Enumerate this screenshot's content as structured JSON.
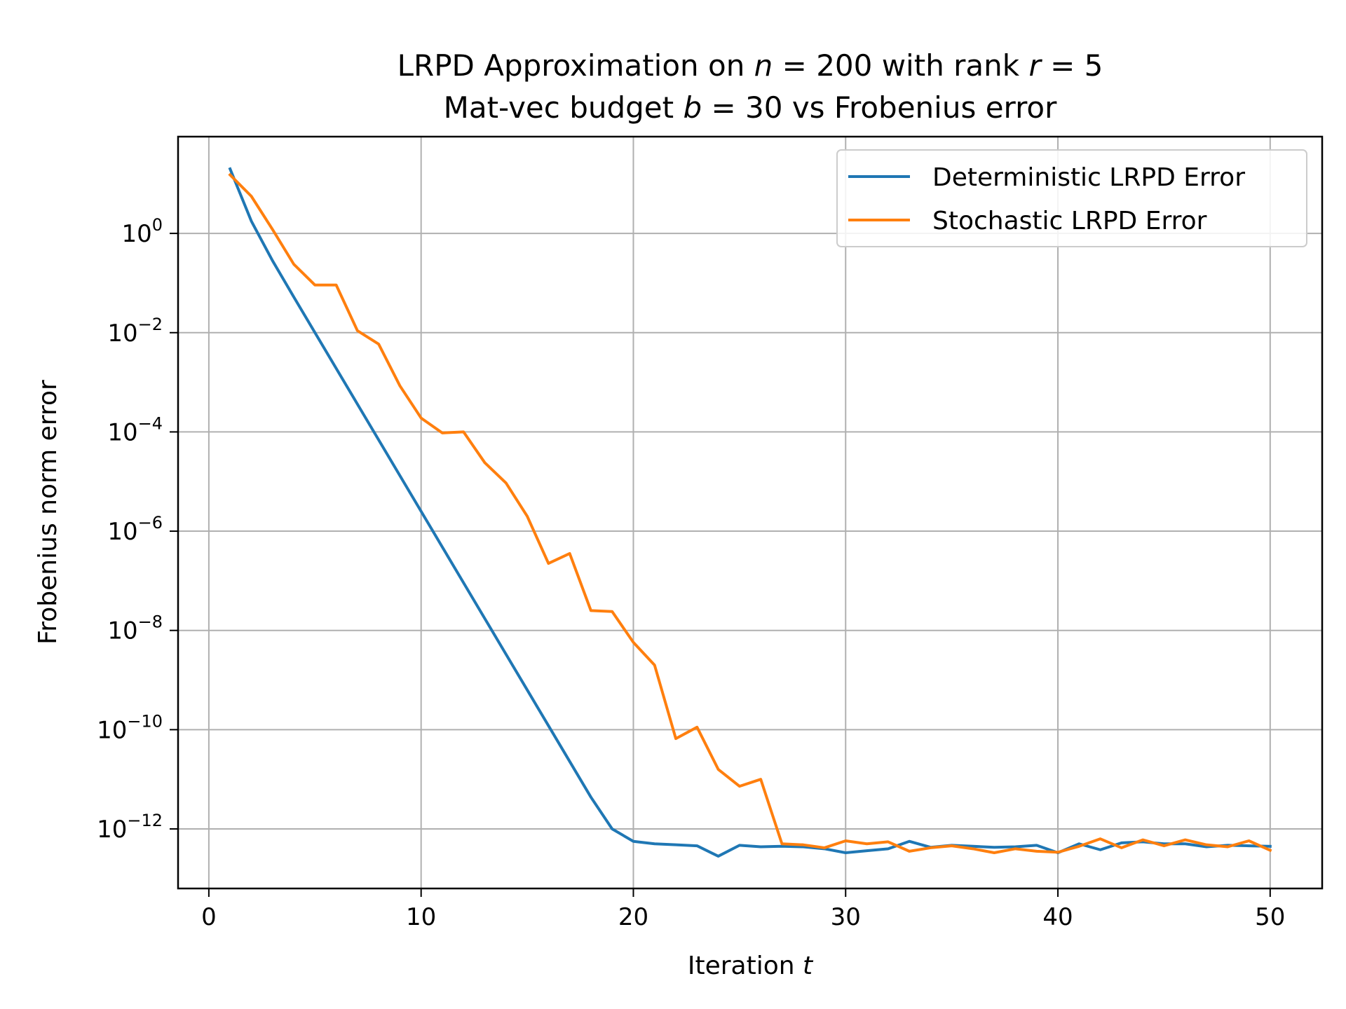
{
  "chart_data": {
    "type": "line",
    "title_line1": "LRPD Approximation on n = 200 with rank r = 5",
    "title_line2": "Mat-vec budget b = 30 vs Frobenius error",
    "xlabel": "Iteration t",
    "ylabel": "Frobenius norm error",
    "xscale": "linear",
    "yscale": "log",
    "xlim": [
      -1.45,
      52.45
    ],
    "ylim_log10": [
      -13.2,
      1.95
    ],
    "x_ticks": [
      0,
      10,
      20,
      30,
      40,
      50
    ],
    "x_tick_labels": [
      "0",
      "10",
      "20",
      "30",
      "40",
      "50"
    ],
    "y_ticks_log10": [
      0,
      -2,
      -4,
      -6,
      -8,
      -10,
      -12
    ],
    "y_tick_labels": [
      {
        "base": "10",
        "exp": "0"
      },
      {
        "base": "10",
        "exp": "−2"
      },
      {
        "base": "10",
        "exp": "−4"
      },
      {
        "base": "10",
        "exp": "−6"
      },
      {
        "base": "10",
        "exp": "−8"
      },
      {
        "base": "10",
        "exp": "−10"
      },
      {
        "base": "10",
        "exp": "−12"
      }
    ],
    "grid": true,
    "legend_position": "upper right",
    "x": [
      1,
      2,
      3,
      4,
      5,
      6,
      7,
      8,
      9,
      10,
      11,
      12,
      13,
      14,
      15,
      16,
      17,
      18,
      19,
      20,
      21,
      22,
      23,
      24,
      25,
      26,
      27,
      28,
      29,
      30,
      31,
      32,
      33,
      34,
      35,
      36,
      37,
      38,
      39,
      40,
      41,
      42,
      43,
      44,
      45,
      46,
      47,
      48,
      49,
      50
    ],
    "series": [
      {
        "name": "Deterministic LRPD Error",
        "color": "#1f77b4",
        "log10_values": [
          1.3,
          0.25,
          -0.55,
          -1.28,
          -2.0,
          -2.72,
          -3.44,
          -4.16,
          -4.88,
          -5.6,
          -6.32,
          -7.04,
          -7.76,
          -8.48,
          -9.2,
          -9.92,
          -10.64,
          -11.36,
          -12.0,
          -12.25,
          -12.3,
          -12.32,
          -12.34,
          -12.55,
          -12.33,
          -12.36,
          -12.35,
          -12.36,
          -12.4,
          -12.48,
          -12.44,
          -12.4,
          -12.25,
          -12.37,
          -12.33,
          -12.35,
          -12.37,
          -12.36,
          -12.33,
          -12.48,
          -12.3,
          -12.42,
          -12.28,
          -12.26,
          -12.3,
          -12.3,
          -12.36,
          -12.33,
          -12.34,
          -12.35
        ],
        "values": [
          19.95,
          1.778,
          0.2818,
          0.05248,
          0.01,
          0.001905,
          0.0003631,
          6.918e-05,
          1.318e-05,
          2.512e-06,
          4.786e-07,
          9.12e-08,
          1.738e-08,
          3.311e-09,
          6.31e-10,
          1.202e-10,
          2.291e-11,
          4.365e-12,
          1e-12,
          5.623e-13,
          5.012e-13,
          4.786e-13,
          4.571e-13,
          2.818e-13,
          4.677e-13,
          4.365e-13,
          4.467e-13,
          4.365e-13,
          3.981e-13,
          3.311e-13,
          3.631e-13,
          3.981e-13,
          5.623e-13,
          4.266e-13,
          4.677e-13,
          4.467e-13,
          4.266e-13,
          4.365e-13,
          4.677e-13,
          3.311e-13,
          5.012e-13,
          3.802e-13,
          5.248e-13,
          5.495e-13,
          5.012e-13,
          5.012e-13,
          4.365e-13,
          4.677e-13,
          4.571e-13,
          4.467e-13
        ]
      },
      {
        "name": "Stochastic LRPD Error",
        "color": "#ff7f0e",
        "log10_values": [
          1.18,
          0.75,
          0.08,
          -0.62,
          -1.04,
          -1.04,
          -1.96,
          -2.23,
          -3.07,
          -3.72,
          -4.02,
          -4.0,
          -4.62,
          -5.03,
          -5.7,
          -6.65,
          -6.45,
          -7.6,
          -7.62,
          -8.24,
          -8.7,
          -10.18,
          -9.95,
          -10.8,
          -11.14,
          -11.0,
          -12.3,
          -12.32,
          -12.38,
          -12.24,
          -12.3,
          -12.26,
          -12.45,
          -12.38,
          -12.34,
          -12.4,
          -12.48,
          -12.4,
          -12.45,
          -12.47,
          -12.35,
          -12.2,
          -12.38,
          -12.22,
          -12.34,
          -12.22,
          -12.32,
          -12.36,
          -12.24,
          -12.43
        ],
        "values": [
          15.14,
          5.623,
          1.202,
          0.2399,
          0.0912,
          0.0912,
          0.01096,
          0.005888,
          0.0008511,
          0.0001905,
          9.55e-05,
          0.0001,
          2.399e-05,
          9.333e-06,
          1.995e-06,
          2.239e-07,
          3.548e-07,
          2.512e-08,
          2.399e-08,
          5.754e-09,
          1.995e-09,
          6.607e-11,
          1.122e-10,
          1.585e-11,
          7.244e-12,
          1e-11,
          5.012e-13,
          4.786e-13,
          4.169e-13,
          5.754e-13,
          5.012e-13,
          5.495e-13,
          3.548e-13,
          4.169e-13,
          4.571e-13,
          3.981e-13,
          3.311e-13,
          3.981e-13,
          3.548e-13,
          3.388e-13,
          4.467e-13,
          6.31e-13,
          4.169e-13,
          6.026e-13,
          4.571e-13,
          6.026e-13,
          4.786e-13,
          4.365e-13,
          5.754e-13,
          3.715e-13
        ]
      }
    ]
  }
}
